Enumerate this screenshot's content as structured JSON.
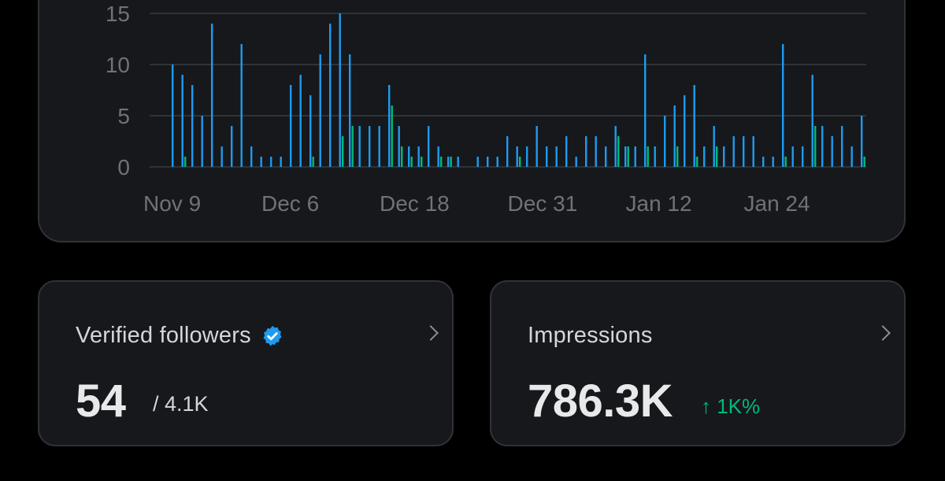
{
  "chart_data": {
    "type": "bar",
    "xlabel": "",
    "ylabel": "",
    "ylim": [
      0,
      15
    ],
    "yticks": [
      "0",
      "5",
      "10",
      "15"
    ],
    "xtick_labels": [
      {
        "label": "Nov 9",
        "day": 0
      },
      {
        "label": "Dec 6",
        "day": 12
      },
      {
        "label": "Dec 18",
        "day": 24
      },
      {
        "label": "Dec 31",
        "day": 37
      },
      {
        "label": "Jan 12",
        "day": 49
      },
      {
        "label": "Jan 24",
        "day": 61
      }
    ],
    "grid": true,
    "colors": {
      "blue": "#1d9bf0",
      "green": "#00ba7c",
      "grid": "#2f3336"
    },
    "days": 72,
    "series": [
      {
        "values": [
          10,
          9,
          8,
          5,
          14,
          2,
          4,
          12,
          2,
          1,
          1,
          1,
          8,
          9,
          7,
          11,
          14,
          15,
          11,
          4,
          4,
          4,
          8,
          4,
          2,
          2,
          4,
          2,
          1,
          1,
          0,
          1,
          1,
          1,
          3,
          2,
          2,
          4,
          2,
          2,
          3,
          1,
          3,
          3,
          2,
          4,
          2,
          2,
          11,
          2,
          5,
          6,
          7,
          8,
          2,
          4,
          2,
          3,
          3,
          3,
          1,
          1,
          12,
          2,
          2,
          9,
          4,
          3,
          4,
          2,
          5,
          0
        ]
      },
      {
        "values": [
          0,
          1,
          0,
          0,
          0,
          0,
          0,
          0,
          0,
          0,
          0,
          0,
          0,
          0,
          1,
          0,
          0,
          3,
          4,
          0,
          0,
          0,
          6,
          2,
          1,
          1,
          0,
          1,
          1,
          0,
          0,
          0,
          0,
          0,
          0,
          1,
          0,
          0,
          0,
          0,
          0,
          0,
          0,
          0,
          0,
          3,
          2,
          0,
          2,
          0,
          0,
          2,
          0,
          1,
          0,
          2,
          0,
          0,
          0,
          0,
          0,
          0,
          1,
          0,
          0,
          4,
          0,
          0,
          0,
          0,
          1,
          0
        ]
      }
    ]
  },
  "cards": {
    "verified": {
      "label": "Verified followers",
      "value": "54",
      "total": "/ 4.1K"
    },
    "impressions": {
      "label": "Impressions",
      "value": "786.3K",
      "change": "↑ 1K%",
      "change_color": "#00ba7c"
    }
  }
}
